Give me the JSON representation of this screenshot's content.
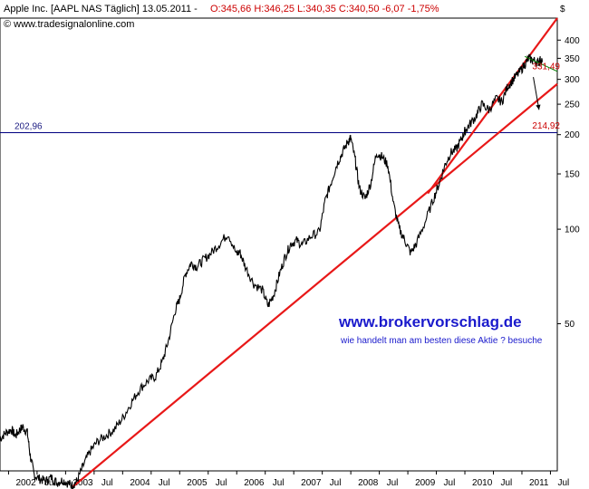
{
  "header": {
    "instrument": "Apple Inc. [AAPL NAS  Täglich] 13.05.2011 -",
    "quote": "O:345,66 H:346,25 L:340,35 C:340,50 -6,07 -1,75%",
    "source": "© www.tradesignalonline.com"
  },
  "watermark": {
    "url": "www.brokervorschlag.de",
    "tagline": "wie handelt man am besten diese Aktie  ? besuche"
  },
  "colors": {
    "price": "#000000",
    "trendline": "#e81818",
    "resistance": "#000080",
    "downtrend": "#008000",
    "axis": "#000000",
    "watermark": "#1a1acc"
  },
  "chart_data": {
    "type": "line",
    "yscale": "log",
    "ylim": [
      17,
      470
    ],
    "xlim": [
      2001.85,
      2011.62
    ],
    "y_axis_unit": "$",
    "y_ticks": [
      {
        "value": 400,
        "label": "400"
      },
      {
        "value": 350,
        "label": "350"
      },
      {
        "value": 300,
        "label": "300"
      },
      {
        "value": 250,
        "label": "250"
      },
      {
        "value": 200,
        "label": "200"
      },
      {
        "value": 150,
        "label": "150"
      },
      {
        "value": 100,
        "label": "100"
      },
      {
        "value": 50,
        "label": "50"
      }
    ],
    "x_ticks": [
      {
        "value": 2002.0,
        "label": "2002"
      },
      {
        "value": 2002.5,
        "label": "Jul"
      },
      {
        "value": 2003.0,
        "label": "2003"
      },
      {
        "value": 2003.5,
        "label": "Jul"
      },
      {
        "value": 2004.0,
        "label": "2004"
      },
      {
        "value": 2004.5,
        "label": "Jul"
      },
      {
        "value": 2005.0,
        "label": "2005"
      },
      {
        "value": 2005.5,
        "label": "Jul"
      },
      {
        "value": 2006.0,
        "label": "2006"
      },
      {
        "value": 2006.5,
        "label": "Jul"
      },
      {
        "value": 2007.0,
        "label": "2007"
      },
      {
        "value": 2007.5,
        "label": "Jul"
      },
      {
        "value": 2008.0,
        "label": "2008"
      },
      {
        "value": 2008.5,
        "label": "Jul"
      },
      {
        "value": 2009.0,
        "label": "2009"
      },
      {
        "value": 2009.5,
        "label": "Jul"
      },
      {
        "value": 2010.0,
        "label": "2010"
      },
      {
        "value": 2010.5,
        "label": "Jul"
      },
      {
        "value": 2011.0,
        "label": "2011"
      },
      {
        "value": 2011.5,
        "label": "Jul"
      }
    ],
    "series": [
      {
        "x": [
          2001.85,
          2001.95,
          2002.05,
          2002.12,
          2002.2,
          2002.25,
          2002.33,
          2002.38,
          2002.45,
          2002.55,
          2002.65,
          2002.75,
          2002.85,
          2002.95,
          2003.05,
          2003.12,
          2003.2,
          2003.3,
          2003.42,
          2003.55,
          2003.7,
          2003.85,
          2004.0,
          2004.15,
          2004.3,
          2004.45,
          2004.58,
          2004.7,
          2004.8,
          2004.92,
          2005.0,
          2005.1,
          2005.2,
          2005.3,
          2005.42,
          2005.55,
          2005.7,
          2005.85,
          2006.0,
          2006.05,
          2006.15,
          2006.3,
          2006.45,
          2006.55,
          2006.65,
          2006.75,
          2006.85,
          2006.95,
          2007.05,
          2007.15,
          2007.3,
          2007.45,
          2007.55,
          2007.65,
          2007.75,
          2007.85,
          2007.95,
          2008.0,
          2008.08,
          2008.15,
          2008.25,
          2008.35,
          2008.45,
          2008.55,
          2008.65,
          2008.75,
          2008.85,
          2008.95,
          2009.05,
          2009.15,
          2009.3,
          2009.45,
          2009.55,
          2009.65,
          2009.75,
          2009.85,
          2009.95,
          2010.0,
          2010.08,
          2010.2,
          2010.3,
          2010.42,
          2010.55,
          2010.65,
          2010.75,
          2010.85,
          2010.95,
          2011.05,
          2011.12,
          2011.2,
          2011.28,
          2011.32,
          2011.36
        ],
        "y": [
          21.5,
          22.5,
          23.0,
          22.0,
          23.0,
          23.5,
          22.5,
          19.0,
          16.5,
          16.0,
          15.8,
          16.2,
          15.6,
          15.9,
          15.5,
          15.3,
          15.8,
          17.5,
          19.5,
          21.0,
          22.0,
          23.0,
          25.0,
          28.0,
          31.0,
          33.0,
          34.0,
          38.0,
          44.0,
          55.0,
          60.0,
          72.0,
          78.0,
          76.0,
          80.0,
          84.0,
          90.0,
          97.0,
          83.0,
          85.0,
          76.0,
          67.0,
          64.0,
          57.0,
          62.0,
          72.0,
          82.0,
          90.0,
          92.0,
          89.0,
          95.0,
          98.0,
          123.0,
          140.0,
          160.0,
          175.0,
          190.0,
          195.0,
          165.0,
          135.0,
          125.0,
          140.0,
          175.0,
          170.0,
          160.0,
          120.0,
          100.0,
          92.0,
          84.0,
          90.0,
          105.0,
          125.0,
          140.0,
          160.0,
          175.0,
          180.0,
          195.0,
          205.0,
          215.0,
          230.0,
          250.0,
          240.0,
          260.0,
          255.0,
          285.0,
          300.0,
          315.0,
          335.0,
          350.0,
          345.0,
          340.0,
          345.0,
          340.5
        ]
      }
    ],
    "resistance_line": {
      "value": 202.96,
      "label": "202,96"
    },
    "trend_lines": [
      {
        "from": {
          "x": 2003.12,
          "y": 15.1
        },
        "to": {
          "x": 2011.62,
          "y": 290.0
        }
      },
      {
        "from": {
          "x": 2009.35,
          "y": 130.0
        },
        "to": {
          "x": 2011.62,
          "y": 470.0
        }
      }
    ],
    "downtrend_line": {
      "from": {
        "x": 2011.05,
        "y": 355.0
      },
      "to": {
        "x": 2011.62,
        "y": 318.0
      }
    },
    "projections": [
      {
        "value": 331.49,
        "label": "331,49",
        "x": 2011.15
      },
      {
        "value": 214.92,
        "label": "214,92",
        "x": 2011.15
      }
    ],
    "projection_arrow": {
      "from": {
        "x": 2011.2,
        "y": 305.0
      },
      "to": {
        "x": 2011.3,
        "y": 240.0
      }
    }
  }
}
